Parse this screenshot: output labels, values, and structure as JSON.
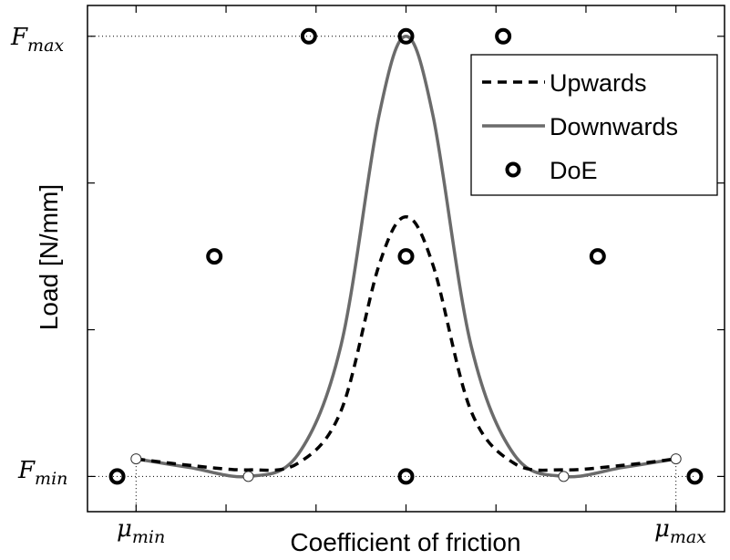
{
  "chart_data": {
    "type": "line",
    "xlabel": "Coefficient of friction",
    "ylabel": "Load [N/mm]",
    "x_ticks": [
      {
        "x": 0,
        "main": "μ",
        "sub": "min"
      },
      {
        "x": 1,
        "main": "μ",
        "sub": "max"
      }
    ],
    "y_ticks": [
      {
        "y": 0,
        "main": "F",
        "sub": "min"
      },
      {
        "y": 1,
        "main": "F",
        "sub": "max"
      }
    ],
    "xlim": [
      -0.09,
      1.09
    ],
    "ylim": [
      -0.08,
      1.07
    ],
    "grid": false,
    "legend_position": "top-right",
    "series": [
      {
        "name": "Upwards",
        "style": "dashed",
        "color": "#000000",
        "x": [
          0,
          0.1,
          0.208,
          0.3,
          0.38,
          0.45,
          0.5,
          0.55,
          0.62,
          0.7,
          0.792,
          0.9,
          1
        ],
        "y": [
          0.04,
          0.025,
          0.015,
          0.03,
          0.15,
          0.48,
          0.59,
          0.48,
          0.15,
          0.03,
          0.015,
          0.025,
          0.04
        ]
      },
      {
        "name": "Downwards",
        "style": "solid",
        "color": "#6b6b6b",
        "x": [
          0,
          0.1,
          0.208,
          0.3,
          0.38,
          0.45,
          0.5,
          0.55,
          0.62,
          0.7,
          0.792,
          0.9,
          1
        ],
        "y": [
          0.04,
          0.02,
          0.0,
          0.05,
          0.3,
          0.82,
          1.0,
          0.82,
          0.3,
          0.05,
          0.0,
          0.02,
          0.04
        ]
      },
      {
        "name": "DoE",
        "style": "markers",
        "color": "#000000",
        "x": [
          -0.035,
          0.5,
          1.035,
          0.145,
          0.5,
          0.855,
          0.32,
          0.5,
          0.68
        ],
        "y": [
          0,
          0,
          0,
          0.5,
          0.5,
          0.5,
          1.0,
          1.0,
          1.0
        ]
      }
    ],
    "control_points": {
      "x": [
        0,
        0.208,
        0.792,
        1
      ],
      "y": [
        0.04,
        0.0,
        0.0,
        0.04
      ]
    }
  },
  "colors": {
    "axes": "#000000",
    "downwards": "#6b6b6b",
    "upwards": "#000000",
    "guides": "#000000"
  }
}
